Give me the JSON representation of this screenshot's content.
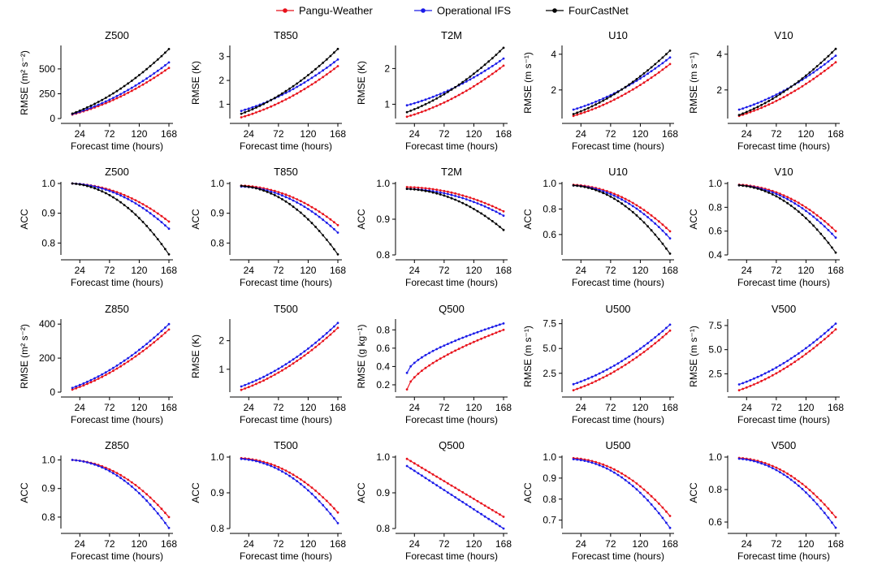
{
  "legend": [
    {
      "name": "Pangu-Weather",
      "color": "#e8101a"
    },
    {
      "name": "Operational IFS",
      "color": "#1a1ae8"
    },
    {
      "name": "FourCastNet",
      "color": "#000000"
    }
  ],
  "chart_data": [
    {
      "type": "line",
      "title": "Z500",
      "xlabel": "Forecast time (hours)",
      "ylabel": "RMSE (m² s⁻²)",
      "xlim": [
        0,
        168
      ],
      "ylim": [
        0,
        720
      ],
      "xticks": [
        24,
        72,
        120,
        168
      ],
      "yticks": [
        0,
        250,
        500
      ],
      "yticklabels": [
        "0",
        "250",
        "500"
      ],
      "series": [
        {
          "name": "Pangu-Weather",
          "kind": "grow",
          "start": 40,
          "end": 510
        },
        {
          "name": "Operational IFS",
          "kind": "grow",
          "start": 45,
          "end": 565
        },
        {
          "name": "FourCastNet",
          "kind": "grow",
          "start": 50,
          "end": 700
        }
      ]
    },
    {
      "type": "line",
      "title": "T850",
      "xlabel": "Forecast time (hours)",
      "ylabel": "RMSE (K)",
      "xlim": [
        0,
        168
      ],
      "ylim": [
        0.4,
        3.4
      ],
      "xticks": [
        24,
        72,
        120,
        168
      ],
      "yticks": [
        1,
        2,
        3
      ],
      "yticklabels": [
        "1",
        "2",
        "3"
      ],
      "series": [
        {
          "name": "Pangu-Weather",
          "kind": "grow",
          "start": 0.45,
          "end": 2.6
        },
        {
          "name": "Operational IFS",
          "kind": "grow",
          "start": 0.72,
          "end": 2.88
        },
        {
          "name": "FourCastNet",
          "kind": "grow",
          "start": 0.6,
          "end": 3.32
        }
      ]
    },
    {
      "type": "line",
      "title": "T2M",
      "xlabel": "Forecast time (hours)",
      "ylabel": "RMSE (K)",
      "xlim": [
        0,
        168
      ],
      "ylim": [
        0.6,
        2.6
      ],
      "xticks": [
        24,
        72,
        120,
        168
      ],
      "yticks": [
        1,
        2
      ],
      "yticklabels": [
        "1",
        "2"
      ],
      "series": [
        {
          "name": "Pangu-Weather",
          "kind": "grow",
          "start": 0.65,
          "end": 2.08
        },
        {
          "name": "Operational IFS",
          "kind": "grow",
          "start": 0.97,
          "end": 2.28
        },
        {
          "name": "FourCastNet",
          "kind": "grow",
          "start": 0.78,
          "end": 2.58
        }
      ]
    },
    {
      "type": "line",
      "title": "U10",
      "xlabel": "Forecast time (hours)",
      "ylabel": "RMSE (m s⁻¹)",
      "xlim": [
        0,
        168
      ],
      "ylim": [
        0.4,
        4.4
      ],
      "xticks": [
        24,
        72,
        120,
        168
      ],
      "yticks": [
        2,
        4
      ],
      "yticklabels": [
        "2",
        "4"
      ],
      "series": [
        {
          "name": "Pangu-Weather",
          "kind": "grow",
          "start": 0.55,
          "end": 3.45
        },
        {
          "name": "Operational IFS",
          "kind": "grow",
          "start": 0.9,
          "end": 3.82
        },
        {
          "name": "FourCastNet",
          "kind": "grow",
          "start": 0.65,
          "end": 4.2
        }
      ]
    },
    {
      "type": "line",
      "title": "V10",
      "xlabel": "Forecast time (hours)",
      "ylabel": "RMSE (m s⁻¹)",
      "xlim": [
        0,
        168
      ],
      "ylim": [
        0.4,
        4.4
      ],
      "xticks": [
        24,
        72,
        120,
        168
      ],
      "yticks": [
        2,
        4
      ],
      "yticklabels": [
        "2",
        "4"
      ],
      "series": [
        {
          "name": "Pangu-Weather",
          "kind": "grow",
          "start": 0.55,
          "end": 3.55
        },
        {
          "name": "Operational IFS",
          "kind": "grow",
          "start": 0.9,
          "end": 3.92
        },
        {
          "name": "FourCastNet",
          "kind": "grow",
          "start": 0.6,
          "end": 4.3
        }
      ]
    },
    {
      "type": "line",
      "title": "Z500",
      "xlabel": "Forecast time (hours)",
      "ylabel": "ACC",
      "xlim": [
        0,
        168
      ],
      "ylim": [
        0.76,
        1.0
      ],
      "xticks": [
        24,
        72,
        120,
        168
      ],
      "yticks": [
        0.8,
        0.9,
        1.0
      ],
      "yticklabels": [
        "0.8",
        "0.9",
        "1.0"
      ],
      "series": [
        {
          "name": "Pangu-Weather",
          "kind": "decay",
          "start": 1.0,
          "end": 0.872
        },
        {
          "name": "Operational IFS",
          "kind": "decay",
          "start": 1.0,
          "end": 0.848
        },
        {
          "name": "FourCastNet",
          "kind": "decay",
          "start": 1.0,
          "end": 0.762
        }
      ]
    },
    {
      "type": "line",
      "title": "T850",
      "xlabel": "Forecast time (hours)",
      "ylabel": "ACC",
      "xlim": [
        0,
        168
      ],
      "ylim": [
        0.76,
        1.0
      ],
      "xticks": [
        24,
        72,
        120,
        168
      ],
      "yticks": [
        0.8,
        0.9,
        1.0
      ],
      "yticklabels": [
        "0.8",
        "0.9",
        "1.0"
      ],
      "series": [
        {
          "name": "Pangu-Weather",
          "kind": "decay",
          "start": 0.993,
          "end": 0.86
        },
        {
          "name": "Operational IFS",
          "kind": "decay",
          "start": 0.99,
          "end": 0.835
        },
        {
          "name": "FourCastNet",
          "kind": "decay",
          "start": 0.992,
          "end": 0.762
        }
      ]
    },
    {
      "type": "line",
      "title": "T2M",
      "xlabel": "Forecast time (hours)",
      "ylabel": "ACC",
      "xlim": [
        0,
        168
      ],
      "ylim": [
        0.8,
        1.0
      ],
      "xticks": [
        24,
        72,
        120,
        168
      ],
      "yticks": [
        0.8,
        0.9,
        1.0
      ],
      "yticklabels": [
        "0.8",
        "0.9",
        "1.0"
      ],
      "series": [
        {
          "name": "Pangu-Weather",
          "kind": "decay",
          "start": 0.99,
          "end": 0.922
        },
        {
          "name": "Operational IFS",
          "kind": "decay",
          "start": 0.985,
          "end": 0.91
        },
        {
          "name": "FourCastNet",
          "kind": "decay",
          "start": 0.985,
          "end": 0.87
        }
      ]
    },
    {
      "type": "line",
      "title": "U10",
      "xlabel": "Forecast time (hours)",
      "ylabel": "ACC",
      "xlim": [
        0,
        168
      ],
      "ylim": [
        0.44,
        1.0
      ],
      "xticks": [
        24,
        72,
        120,
        168
      ],
      "yticks": [
        0.6,
        0.8,
        1.0
      ],
      "yticklabels": [
        "0.6",
        "0.8",
        "1.0"
      ],
      "series": [
        {
          "name": "Pangu-Weather",
          "kind": "decay",
          "start": 0.99,
          "end": 0.625
        },
        {
          "name": "Operational IFS",
          "kind": "decay",
          "start": 0.985,
          "end": 0.57
        },
        {
          "name": "FourCastNet",
          "kind": "decay",
          "start": 0.985,
          "end": 0.45
        }
      ]
    },
    {
      "type": "line",
      "title": "V10",
      "xlabel": "Forecast time (hours)",
      "ylabel": "ACC",
      "xlim": [
        0,
        168
      ],
      "ylim": [
        0.4,
        1.0
      ],
      "xticks": [
        24,
        72,
        120,
        168
      ],
      "yticks": [
        0.4,
        0.6,
        0.8,
        1.0
      ],
      "yticklabels": [
        "0.4",
        "0.6",
        "0.8",
        "1.0"
      ],
      "series": [
        {
          "name": "Pangu-Weather",
          "kind": "decay",
          "start": 0.99,
          "end": 0.6
        },
        {
          "name": "Operational IFS",
          "kind": "decay",
          "start": 0.985,
          "end": 0.545
        },
        {
          "name": "FourCastNet",
          "kind": "decay",
          "start": 0.985,
          "end": 0.42
        }
      ]
    },
    {
      "type": "line",
      "title": "Z850",
      "xlabel": "Forecast time (hours)",
      "ylabel": "RMSE (m² s⁻²)",
      "xlim": [
        0,
        168
      ],
      "ylim": [
        0,
        420
      ],
      "xticks": [
        24,
        72,
        120,
        168
      ],
      "yticks": [
        0,
        200,
        400
      ],
      "yticklabels": [
        "0",
        "200",
        "400"
      ],
      "series": [
        {
          "name": "Pangu-Weather",
          "kind": "grow",
          "start": 15,
          "end": 368
        },
        {
          "name": "Operational IFS",
          "kind": "grow",
          "start": 25,
          "end": 400
        }
      ]
    },
    {
      "type": "line",
      "title": "T500",
      "xlabel": "Forecast time (hours)",
      "ylabel": "RMSE (K)",
      "xlim": [
        0,
        168
      ],
      "ylim": [
        0.2,
        2.7
      ],
      "xticks": [
        24,
        72,
        120,
        168
      ],
      "yticks": [
        1,
        2
      ],
      "yticklabels": [
        "1",
        "2"
      ],
      "series": [
        {
          "name": "Pangu-Weather",
          "kind": "grow",
          "start": 0.28,
          "end": 2.45
        },
        {
          "name": "Operational IFS",
          "kind": "grow",
          "start": 0.4,
          "end": 2.62
        }
      ]
    },
    {
      "type": "line",
      "title": "Q500",
      "xlabel": "Forecast time (hours)",
      "ylabel": "RMSE (g kg⁻¹)",
      "xlim": [
        0,
        168
      ],
      "ylim": [
        0.12,
        0.9
      ],
      "xticks": [
        24,
        72,
        120,
        168
      ],
      "yticks": [
        0.2,
        0.4,
        0.6,
        0.8
      ],
      "yticklabels": [
        "0.2",
        "0.4",
        "0.6",
        "0.8"
      ],
      "series": [
        {
          "name": "Pangu-Weather",
          "kind": "sat",
          "start": 0.15,
          "end": 0.8
        },
        {
          "name": "Operational IFS",
          "kind": "sat",
          "start": 0.33,
          "end": 0.87
        }
      ]
    },
    {
      "type": "line",
      "title": "U500",
      "xlabel": "Forecast time (hours)",
      "ylabel": "RMSE (m s⁻¹)",
      "xlim": [
        0,
        168
      ],
      "ylim": [
        0.6,
        7.8
      ],
      "xticks": [
        24,
        72,
        120,
        168
      ],
      "yticks": [
        2.5,
        5.0,
        7.5
      ],
      "yticklabels": [
        "2.5",
        "5.0",
        "7.5"
      ],
      "series": [
        {
          "name": "Pangu-Weather",
          "kind": "grow",
          "start": 0.8,
          "end": 6.8
        },
        {
          "name": "Operational IFS",
          "kind": "grow",
          "start": 1.4,
          "end": 7.4
        }
      ]
    },
    {
      "type": "line",
      "title": "V500",
      "xlabel": "Forecast time (hours)",
      "ylabel": "RMSE (m s⁻¹)",
      "xlim": [
        0,
        168
      ],
      "ylim": [
        0.6,
        8.0
      ],
      "xticks": [
        24,
        72,
        120,
        168
      ],
      "yticks": [
        2.5,
        5.0,
        7.5
      ],
      "yticklabels": [
        "2.5",
        "5.0",
        "7.5"
      ],
      "series": [
        {
          "name": "Pangu-Weather",
          "kind": "grow",
          "start": 0.8,
          "end": 7.1
        },
        {
          "name": "Operational IFS",
          "kind": "grow",
          "start": 1.4,
          "end": 7.7
        }
      ]
    },
    {
      "type": "line",
      "title": "Z850",
      "xlabel": "Forecast time (hours)",
      "ylabel": "ACC",
      "xlim": [
        0,
        168
      ],
      "ylim": [
        0.76,
        1.01
      ],
      "xticks": [
        24,
        72,
        120,
        168
      ],
      "yticks": [
        0.8,
        0.9,
        1.0
      ],
      "yticklabels": [
        "0.8",
        "0.9",
        "1.0"
      ],
      "series": [
        {
          "name": "Pangu-Weather",
          "kind": "decay",
          "start": 1.0,
          "end": 0.8
        },
        {
          "name": "Operational IFS",
          "kind": "decay",
          "start": 1.0,
          "end": 0.762
        }
      ]
    },
    {
      "type": "line",
      "title": "T500",
      "xlabel": "Forecast time (hours)",
      "ylabel": "ACC",
      "xlim": [
        0,
        168
      ],
      "ylim": [
        0.8,
        1.0
      ],
      "xticks": [
        24,
        72,
        120,
        168
      ],
      "yticks": [
        0.8,
        0.9,
        1.0
      ],
      "yticklabels": [
        "0.8",
        "0.9",
        "1.0"
      ],
      "series": [
        {
          "name": "Pangu-Weather",
          "kind": "decay",
          "start": 0.997,
          "end": 0.845
        },
        {
          "name": "Operational IFS",
          "kind": "decay",
          "start": 0.995,
          "end": 0.815
        }
      ]
    },
    {
      "type": "line",
      "title": "Q500",
      "xlabel": "Forecast time (hours)",
      "ylabel": "ACC",
      "xlim": [
        0,
        168
      ],
      "ylim": [
        0.8,
        1.0
      ],
      "xticks": [
        24,
        72,
        120,
        168
      ],
      "yticks": [
        0.8,
        0.9,
        1.0
      ],
      "yticklabels": [
        "0.8",
        "0.9",
        "1.0"
      ],
      "series": [
        {
          "name": "Pangu-Weather",
          "kind": "lin",
          "start": 0.995,
          "end": 0.833
        },
        {
          "name": "Operational IFS",
          "kind": "lin",
          "start": 0.975,
          "end": 0.8
        }
      ]
    },
    {
      "type": "line",
      "title": "U500",
      "xlabel": "Forecast time (hours)",
      "ylabel": "ACC",
      "xlim": [
        0,
        168
      ],
      "ylim": [
        0.66,
        1.0
      ],
      "xticks": [
        24,
        72,
        120,
        168
      ],
      "yticks": [
        0.7,
        0.8,
        0.9,
        1.0
      ],
      "yticklabels": [
        "0.7",
        "0.8",
        "0.9",
        "1.0"
      ],
      "series": [
        {
          "name": "Pangu-Weather",
          "kind": "decay",
          "start": 0.995,
          "end": 0.72
        },
        {
          "name": "Operational IFS",
          "kind": "decay",
          "start": 0.99,
          "end": 0.663
        }
      ]
    },
    {
      "type": "line",
      "title": "V500",
      "xlabel": "Forecast time (hours)",
      "ylabel": "ACC",
      "xlim": [
        0,
        168
      ],
      "ylim": [
        0.56,
        1.0
      ],
      "xticks": [
        24,
        72,
        120,
        168
      ],
      "yticks": [
        0.6,
        0.8,
        1.0
      ],
      "yticklabels": [
        "0.6",
        "0.8",
        "1.0"
      ],
      "series": [
        {
          "name": "Pangu-Weather",
          "kind": "decay",
          "start": 0.995,
          "end": 0.63
        },
        {
          "name": "Operational IFS",
          "kind": "decay",
          "start": 0.99,
          "end": 0.565
        }
      ]
    }
  ]
}
